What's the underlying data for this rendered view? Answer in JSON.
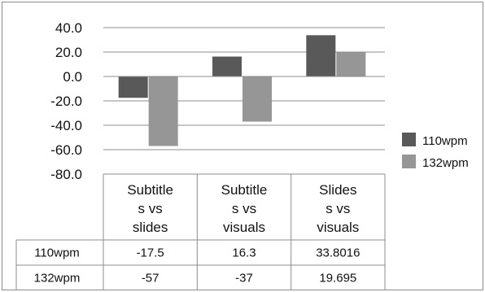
{
  "chart_data": {
    "type": "bar",
    "categories": [
      [
        "Subtitle",
        "s vs",
        "slides"
      ],
      [
        "Subtitle",
        "s vs",
        "visuals"
      ],
      [
        "Slides",
        "s vs",
        "visuals"
      ]
    ],
    "series": [
      {
        "name": "110wpm",
        "values": [
          -17.5,
          16.3,
          33.8016
        ],
        "color": "#595959"
      },
      {
        "name": "132wpm",
        "values": [
          -57,
          -37,
          19.695
        ],
        "color": "#969696"
      }
    ],
    "table_values": [
      [
        "-17.5",
        "16.3",
        "33.8016"
      ],
      [
        "-57",
        "-37",
        "19.695"
      ]
    ],
    "yticks": [
      "40.0",
      "20.0",
      "0.0",
      "-20.0",
      "-40.0",
      "-60.0",
      "-80.0"
    ],
    "ylim": [
      -80,
      40
    ],
    "grid": true,
    "legend": "right",
    "title": "",
    "xlabel": "",
    "ylabel": ""
  }
}
